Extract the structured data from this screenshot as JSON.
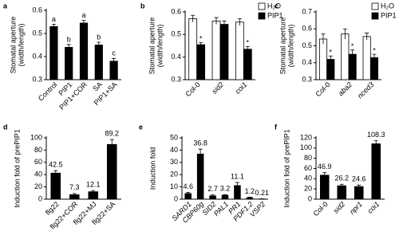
{
  "chart_data": [
    {
      "type": "bar",
      "panel": "a",
      "y_label": [
        "Stomatal aperture",
        "(width/length)"
      ],
      "categories": [
        "Control",
        "PIP1",
        "PIP1+COR",
        "SA",
        "PIP1+SA"
      ],
      "values": [
        0.53,
        0.44,
        0.545,
        0.45,
        0.38
      ],
      "errors": [
        0.01,
        0.012,
        0.012,
        0.012,
        0.012
      ],
      "letters": [
        "a",
        "b",
        "a",
        "b",
        "c"
      ],
      "color": "#000000",
      "ylim": [
        0.3,
        0.6
      ],
      "yticks": [
        0.3,
        0.4,
        0.5,
        0.6
      ]
    },
    {
      "type": "bar",
      "panel": "b",
      "y_label": [
        "Stomatal aperture",
        "(width/length)"
      ],
      "categories": [
        "Col-0",
        "sid2",
        "coi1"
      ],
      "italic": [
        false,
        true,
        true
      ],
      "series": [
        {
          "name": "H₂O",
          "color": "#ffffff",
          "values": [
            0.57,
            0.56,
            0.555
          ],
          "errors": [
            0.015,
            0.015,
            0.015
          ]
        },
        {
          "name": "PIP1",
          "color": "#000000",
          "values": [
            0.455,
            0.545,
            0.435
          ],
          "errors": [
            0.01,
            0.015,
            0.012
          ],
          "significance": [
            "*",
            null,
            "*"
          ]
        }
      ],
      "ylim": [
        0.3,
        0.6
      ],
      "yticks": [
        0.3,
        0.4,
        0.5,
        0.6
      ],
      "legend": "upper right"
    },
    {
      "type": "bar",
      "panel": "c",
      "y_label": [
        "Stomatal aperture",
        "(width/length)"
      ],
      "categories": [
        "Col-0",
        "aba2",
        "nced3"
      ],
      "italic": [
        false,
        true,
        true
      ],
      "series": [
        {
          "name": "H₂O",
          "color": "#ffffff",
          "values": [
            0.54,
            0.57,
            0.555
          ],
          "errors": [
            0.03,
            0.03,
            0.02
          ]
        },
        {
          "name": "PIP1",
          "color": "#000000",
          "values": [
            0.42,
            0.45,
            0.43
          ],
          "errors": [
            0.02,
            0.025,
            0.02
          ],
          "significance": [
            "*",
            "*",
            "*"
          ]
        }
      ],
      "ylim": [
        0.3,
        0.7
      ],
      "yticks": [
        0.3,
        0.4,
        0.5,
        0.6,
        0.7
      ],
      "legend": "upper right"
    },
    {
      "type": "bar",
      "panel": "d",
      "y_label": [
        "Induction fold of prePIP1"
      ],
      "categories": [
        "flg22",
        "flg22+COR",
        "flg22+MJ",
        "flg22+SA"
      ],
      "values": [
        42.5,
        7.3,
        12.1,
        89.2
      ],
      "errors": [
        4,
        2,
        2,
        8
      ],
      "color": "#000000",
      "ylim": [
        0,
        100
      ],
      "yticks": [
        0,
        20,
        40,
        60,
        80,
        100
      ]
    },
    {
      "type": "bar",
      "panel": "e",
      "y_label": [
        "Induction fold"
      ],
      "categories": [
        "SARD1",
        "CBP60g",
        "SID2",
        "PAL1",
        "PR1",
        "PDF1.2",
        "VSP2"
      ],
      "italic": [
        true,
        true,
        true,
        true,
        true,
        true,
        true
      ],
      "values": [
        4.6,
        36.8,
        2.7,
        3.2,
        11.1,
        1.2,
        0.21
      ],
      "errors": [
        1,
        4,
        0.8,
        0.5,
        2.5,
        0.5,
        0.1
      ],
      "color": "#000000",
      "ylim": [
        0,
        50
      ],
      "yticks": [
        0,
        10,
        20,
        30,
        40,
        50
      ]
    },
    {
      "type": "bar",
      "panel": "f",
      "y_label": [
        "Induction fold of prePIP1"
      ],
      "categories": [
        "Col-0",
        "sid2",
        "npr1",
        "coi1"
      ],
      "italic": [
        false,
        true,
        true,
        true
      ],
      "values": [
        46.9,
        26.2,
        24.6,
        108.3
      ],
      "errors": [
        5,
        3,
        3,
        6
      ],
      "color": "#000000",
      "ylim": [
        0,
        120
      ],
      "yticks": [
        0,
        20,
        40,
        60,
        80,
        100,
        120
      ]
    }
  ]
}
